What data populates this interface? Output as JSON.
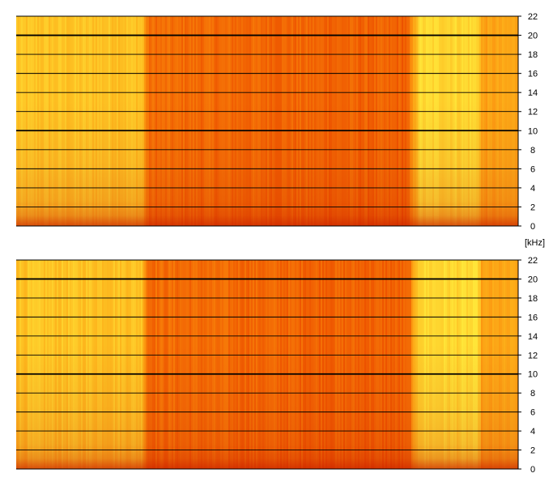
{
  "chart_data": [
    {
      "type": "heatmap",
      "title": "",
      "xlabel": "",
      "ylabel": "",
      "ylim": [
        0,
        22
      ],
      "y_ticks": [
        "0",
        "2",
        "4",
        "6",
        "8",
        "10",
        "12",
        "14",
        "16",
        "18",
        "20",
        "22"
      ],
      "grid": true,
      "major_gridlines": [
        "10",
        "20"
      ],
      "colormap": [
        "#d42800",
        "#ee5500",
        "#fb8d0c",
        "#fdb51c",
        "#ffe83a"
      ],
      "intensity_profile": {
        "time_fraction": [
          0.0,
          0.25,
          0.26,
          0.78,
          0.8,
          0.92,
          0.925,
          1.0
        ],
        "loudness": [
          0.82,
          0.82,
          0.36,
          0.3,
          0.92,
          0.92,
          0.62,
          0.66
        ]
      }
    },
    {
      "type": "heatmap",
      "title": "",
      "xlabel": "",
      "ylabel": "",
      "ylim": [
        0,
        22
      ],
      "y_ticks": [
        "0",
        "2",
        "4",
        "6",
        "8",
        "10",
        "12",
        "14",
        "16",
        "18",
        "20",
        "22"
      ],
      "grid": true,
      "major_gridlines": [
        "10",
        "20"
      ],
      "colormap": [
        "#d42800",
        "#ee5500",
        "#fb8d0c",
        "#fdb51c",
        "#ffe83a"
      ],
      "intensity_profile": {
        "time_fraction": [
          0.0,
          0.25,
          0.26,
          0.78,
          0.8,
          0.92,
          0.925,
          1.0
        ],
        "loudness": [
          0.82,
          0.82,
          0.36,
          0.3,
          0.92,
          0.92,
          0.62,
          0.66
        ]
      }
    }
  ],
  "unit_label": "[kHz]"
}
